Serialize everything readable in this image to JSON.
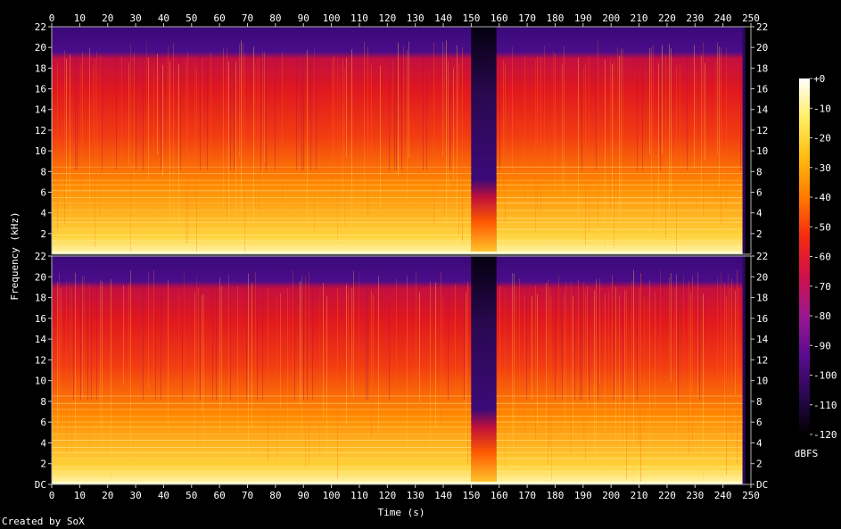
{
  "chart_data": {
    "type": "heatmap",
    "subtype": "spectrogram",
    "title": "",
    "xlabel": "Time (s)",
    "ylabel": "Frequency (kHz)",
    "xlim": [
      0,
      250
    ],
    "ylim": [
      0,
      22
    ],
    "x_ticks": [
      "0",
      "10",
      "20",
      "30",
      "40",
      "50",
      "60",
      "70",
      "80",
      "90",
      "100",
      "110",
      "120",
      "130",
      "140",
      "150",
      "160",
      "170",
      "180",
      "190",
      "200",
      "210",
      "220",
      "230",
      "240",
      "250"
    ],
    "y_ticks": [
      "DC",
      "2",
      "4",
      "6",
      "8",
      "10",
      "12",
      "14",
      "16",
      "18",
      "20",
      "22"
    ],
    "channels": 2,
    "audio_end_s": 247,
    "gap_s": [
      150,
      159
    ],
    "colorbar": {
      "label": "dBFS",
      "ticks": [
        "+0",
        "-10",
        "-20",
        "-30",
        "-40",
        "-50",
        "-60",
        "-70",
        "-80",
        "-90",
        "-100",
        "-110",
        "-120"
      ],
      "range": [
        -120,
        0
      ],
      "colors": [
        "#000000",
        "#2a0850",
        "#5a0c90",
        "#9a1890",
        "#d0104a",
        "#f42a10",
        "#ff7a00",
        "#ffbc10",
        "#ffee60",
        "#ffffff"
      ]
    }
  },
  "footer": {
    "credit": "Created by SoX"
  }
}
